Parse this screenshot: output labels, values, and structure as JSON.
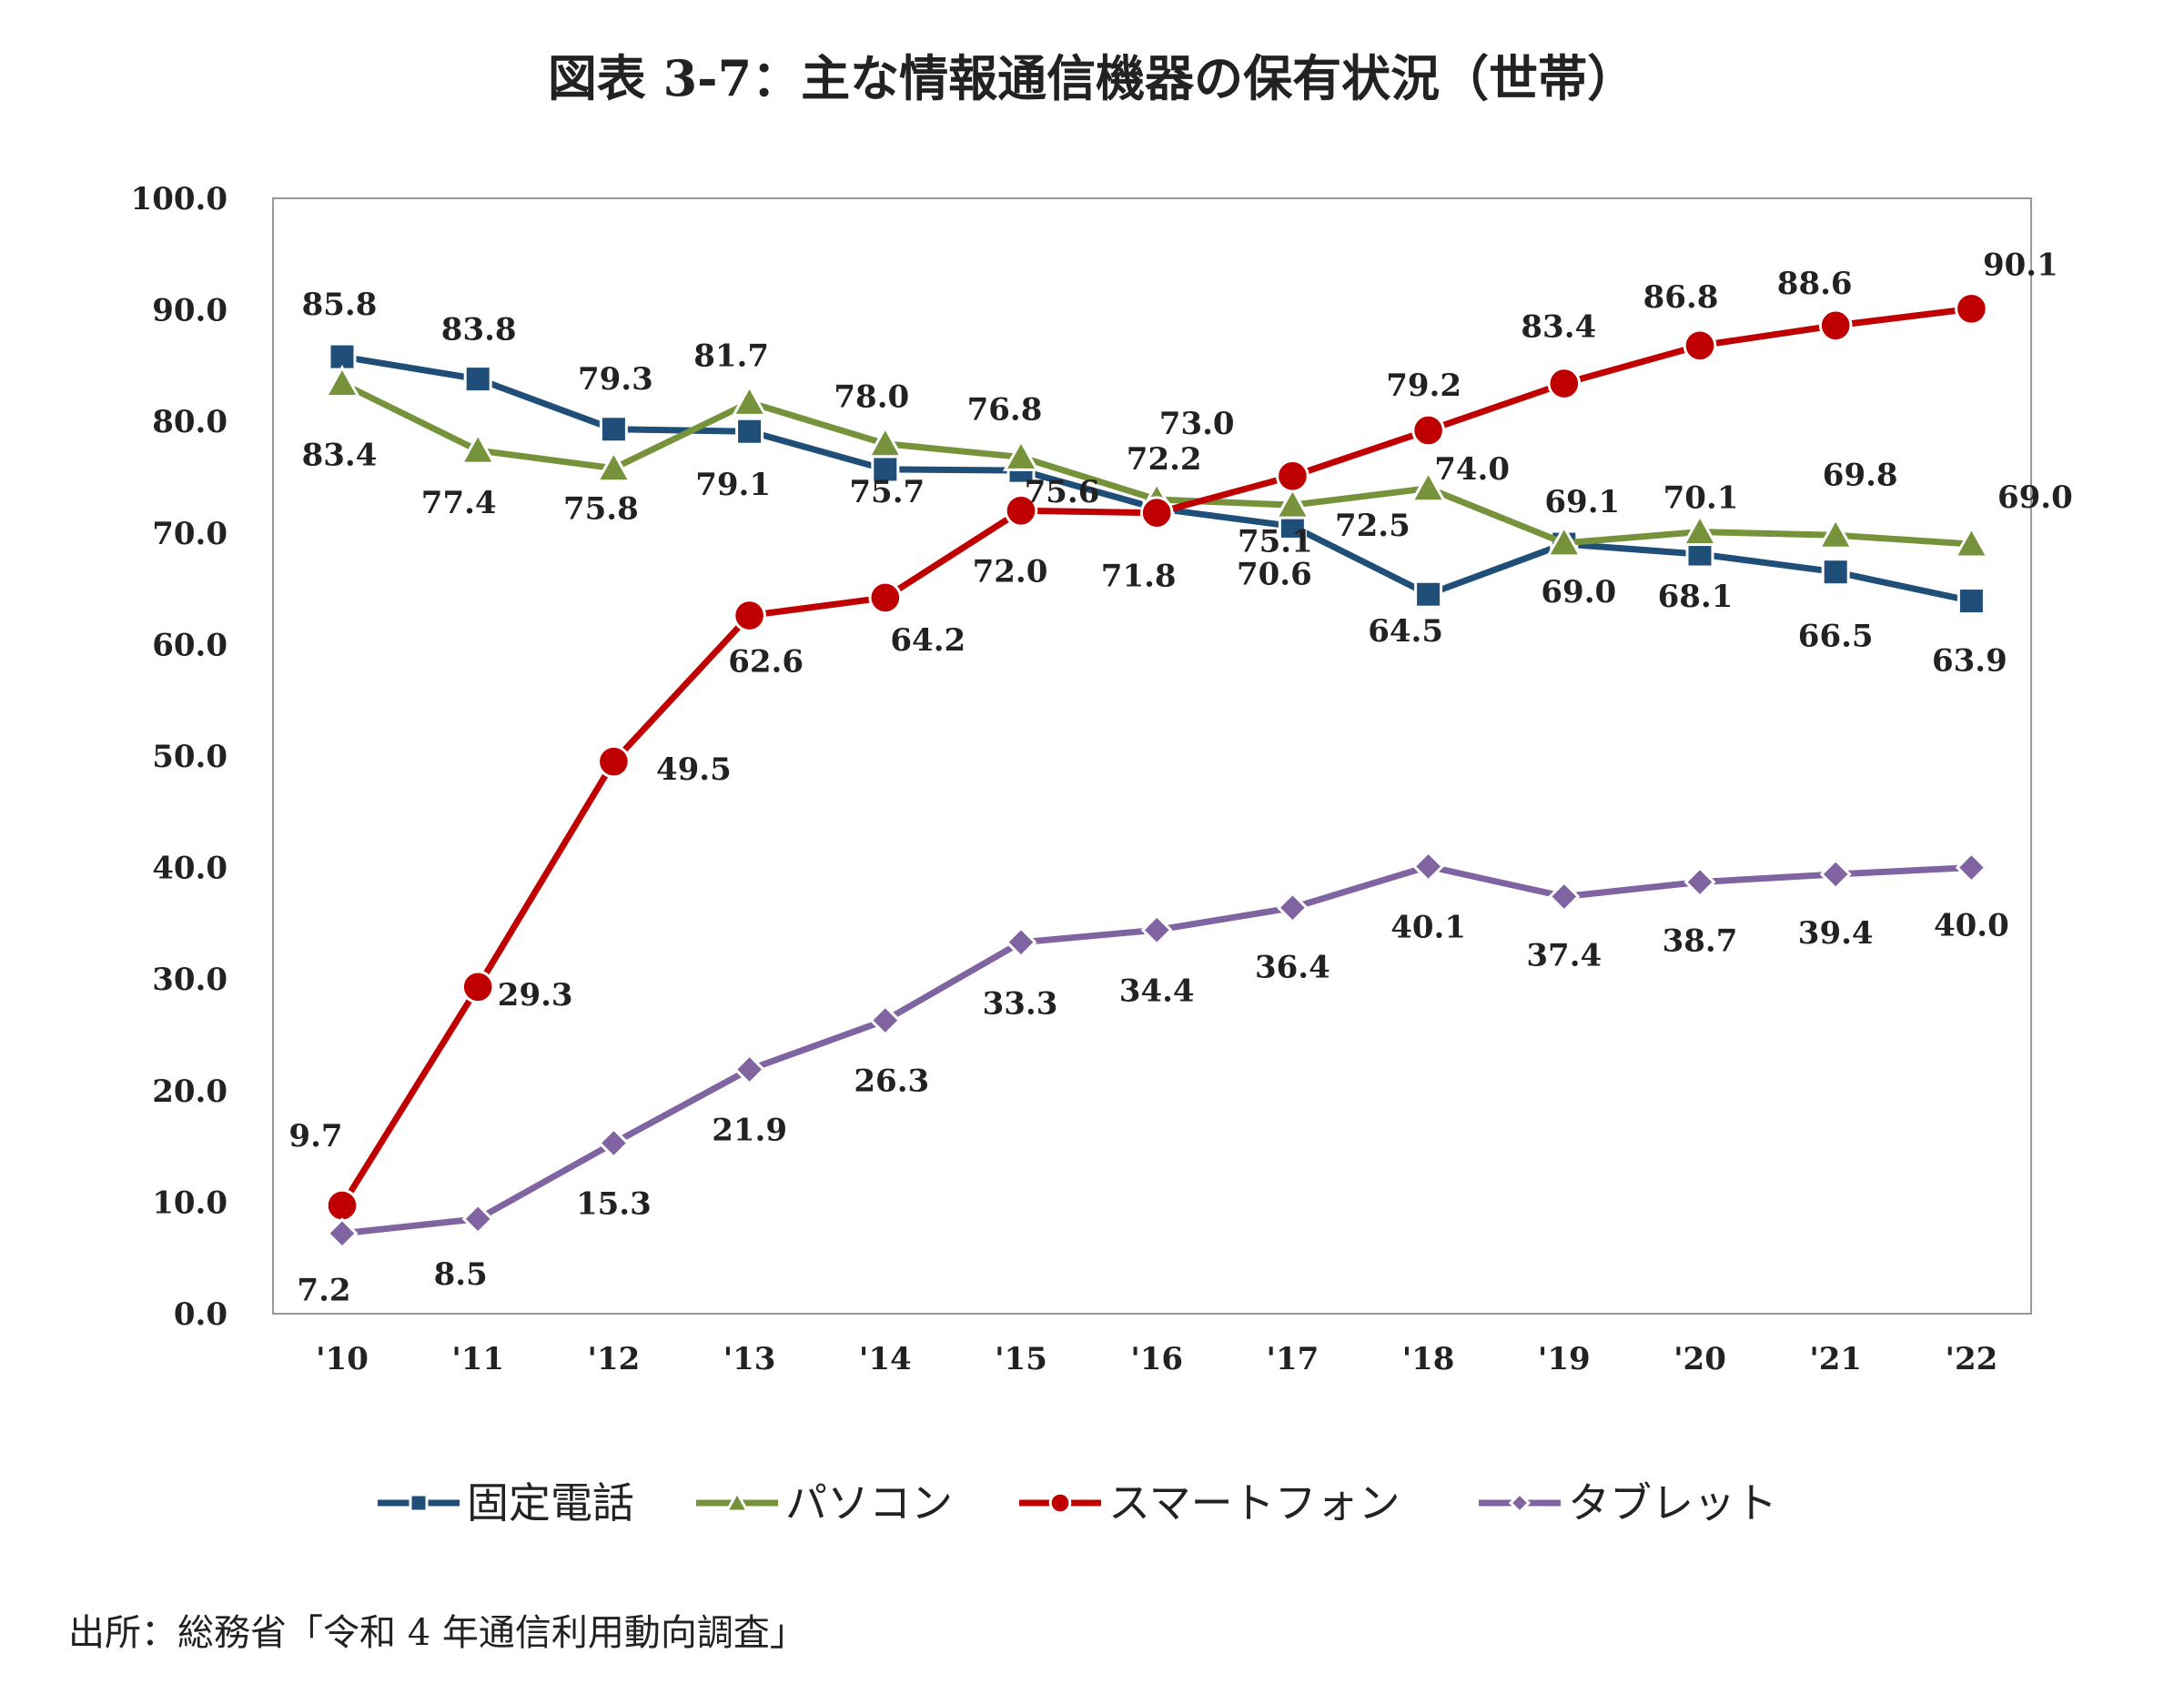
{
  "chart_data": {
    "type": "line",
    "title": "図表 3-7：主な情報通信機器の保有状況（世帯）",
    "xlabel": "",
    "ylabel": "",
    "categories": [
      "'10",
      "'11",
      "'12",
      "'13",
      "'14",
      "'15",
      "'16",
      "'17",
      "'18",
      "'19",
      "'20",
      "'21",
      "'22"
    ],
    "ylim": [
      0,
      100
    ],
    "yticks": [
      "0.0",
      "10.0",
      "20.0",
      "30.0",
      "40.0",
      "50.0",
      "60.0",
      "70.0",
      "80.0",
      "90.0",
      "100.0"
    ],
    "grid": false,
    "legend_position": "bottom",
    "series": [
      {
        "name": "固定電話",
        "color": "#1f4e79",
        "marker": "square",
        "values": [
          85.8,
          83.8,
          79.3,
          79.1,
          75.7,
          75.6,
          72.2,
          70.6,
          64.5,
          69.0,
          68.1,
          66.5,
          63.9
        ]
      },
      {
        "name": "パソコン",
        "color": "#76933c",
        "marker": "triangle",
        "values": [
          83.4,
          77.4,
          75.8,
          81.7,
          78.0,
          76.8,
          73.0,
          72.5,
          74.0,
          69.1,
          70.1,
          69.8,
          69.0
        ]
      },
      {
        "name": "スマートフォン",
        "color": "#c00000",
        "marker": "circle",
        "values": [
          9.7,
          29.3,
          49.5,
          62.6,
          64.2,
          72.0,
          71.8,
          75.1,
          79.2,
          83.4,
          86.8,
          88.6,
          90.1
        ]
      },
      {
        "name": "タブレット",
        "color": "#8064a2",
        "marker": "diamond",
        "values": [
          7.2,
          8.5,
          15.3,
          21.9,
          26.3,
          33.3,
          34.4,
          36.4,
          40.1,
          37.4,
          38.7,
          39.4,
          40.0
        ]
      }
    ]
  },
  "source_note": "出所：総務省「令和 4 年通信利用動向調査」"
}
